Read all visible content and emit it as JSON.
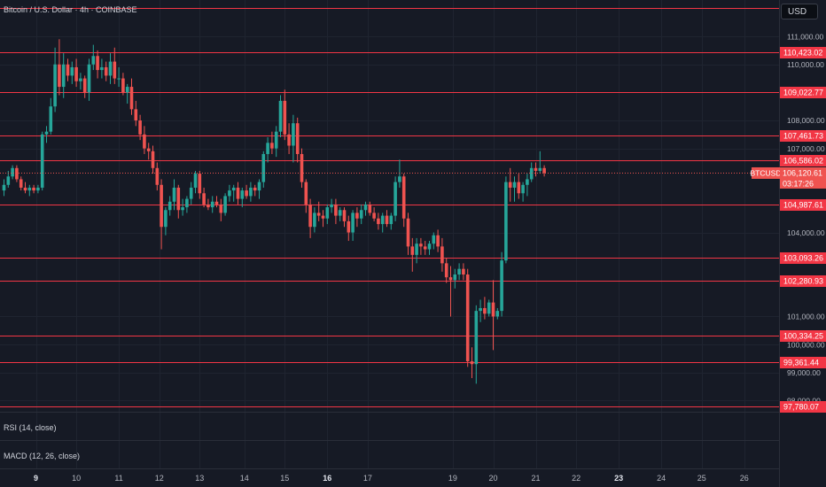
{
  "header": {
    "title": "Bitcoin / U.S. Dollar · 4h · COINBASE"
  },
  "currency_button": "USD",
  "indicators": [
    {
      "label": "RSI (14, close)"
    },
    {
      "label": "MACD (12, 26, close)"
    }
  ],
  "last_price": {
    "symbol": "BTCUSD",
    "value": "106,120.61",
    "countdown": "03:17:26",
    "price": 106120.61
  },
  "colors": {
    "background": "#161a25",
    "up": "#26a69a",
    "down": "#ef5350",
    "level_line": "#f23645",
    "axis_text": "#b2b5be"
  },
  "chart_data": {
    "type": "candlestick",
    "title": "Bitcoin / U.S. Dollar · 4h · COINBASE",
    "ylim": [
      97600,
      112300
    ],
    "x_ticks": [
      {
        "label": "9",
        "index": 7.5,
        "bold": true
      },
      {
        "label": "10",
        "index": 17
      },
      {
        "label": "11",
        "index": 27
      },
      {
        "label": "12",
        "index": 36.5
      },
      {
        "label": "13",
        "index": 46
      },
      {
        "label": "14",
        "index": 56.5
      },
      {
        "label": "15",
        "index": 66
      },
      {
        "label": "16",
        "index": 76,
        "bold": true
      },
      {
        "label": "17",
        "index": 85.5
      },
      {
        "label": "19",
        "index": 105.5
      },
      {
        "label": "20",
        "index": 115
      },
      {
        "label": "21",
        "index": 125
      },
      {
        "label": "22",
        "index": 134.5
      },
      {
        "label": "23",
        "index": 144.5,
        "bold": true
      },
      {
        "label": "24",
        "index": 154.5
      },
      {
        "label": "25",
        "index": 164
      },
      {
        "label": "26",
        "index": 174
      }
    ],
    "y_ticks": [
      "111,000.00",
      "110,000.00",
      "108,000.00",
      "107,000.00",
      "104,000.00",
      "101,000.00",
      "100,000.00",
      "99,000.00",
      "98,000.00"
    ],
    "y_tick_values": [
      111000,
      110000,
      108000,
      107000,
      104000,
      101000,
      100000,
      99000,
      98000
    ],
    "levels": [
      {
        "label": "110,423.02",
        "price": 110423.02
      },
      {
        "label": "109,022.77",
        "price": 109022.77
      },
      {
        "label": "107,461.73",
        "price": 107461.73
      },
      {
        "label": "106,586.02",
        "price": 106586.02
      },
      {
        "label": "104,987.61",
        "price": 104987.61
      },
      {
        "label": "103,093.26",
        "price": 103093.26
      },
      {
        "label": "102,280.93",
        "price": 102280.93
      },
      {
        "label": "100,334.25",
        "price": 100334.25
      },
      {
        "label": "99,361.44",
        "price": 99361.44
      },
      {
        "label": "97,780.07",
        "price": 97780.07
      }
    ],
    "candles": [
      [
        105500,
        105900,
        105300,
        105700
      ],
      [
        105700,
        106200,
        105600,
        106000
      ],
      [
        106000,
        106400,
        105900,
        106300
      ],
      [
        106300,
        106400,
        105800,
        105900
      ],
      [
        105900,
        106000,
        105500,
        105600
      ],
      [
        105600,
        105800,
        105400,
        105500
      ],
      [
        105500,
        105700,
        105300,
        105600
      ],
      [
        105600,
        105700,
        105400,
        105500
      ],
      [
        105500,
        105700,
        105400,
        105600
      ],
      [
        105600,
        107600,
        105500,
        107500
      ],
      [
        107500,
        107800,
        107200,
        107600
      ],
      [
        107600,
        108800,
        107500,
        108500
      ],
      [
        108500,
        110600,
        108300,
        110000
      ],
      [
        110000,
        110900,
        108900,
        109200
      ],
      [
        109200,
        110400,
        108800,
        110000
      ],
      [
        110000,
        110200,
        109400,
        109600
      ],
      [
        109600,
        110100,
        109300,
        109900
      ],
      [
        109900,
        110200,
        109200,
        109400
      ],
      [
        109400,
        109700,
        109100,
        109500
      ],
      [
        109500,
        109600,
        108800,
        109000
      ],
      [
        109000,
        110200,
        108700,
        110000
      ],
      [
        110000,
        110700,
        109800,
        110300
      ],
      [
        110300,
        110500,
        109500,
        109800
      ],
      [
        109800,
        110200,
        109500,
        109900
      ],
      [
        109900,
        110100,
        109400,
        109600
      ],
      [
        109600,
        110400,
        109300,
        110100
      ],
      [
        110100,
        110600,
        109300,
        109500
      ],
      [
        109500,
        109900,
        109200,
        109500
      ],
      [
        109500,
        109700,
        108900,
        109000
      ],
      [
        109000,
        109300,
        108600,
        109200
      ],
      [
        109200,
        109500,
        108200,
        108400
      ],
      [
        108400,
        108700,
        107800,
        108000
      ],
      [
        108000,
        108200,
        107300,
        107500
      ],
      [
        107500,
        107800,
        106800,
        107000
      ],
      [
        107000,
        107200,
        106600,
        106900
      ],
      [
        106900,
        107100,
        106100,
        106300
      ],
      [
        106300,
        106500,
        105500,
        105700
      ],
      [
        105700,
        105900,
        103400,
        104200
      ],
      [
        104200,
        104900,
        103900,
        104800
      ],
      [
        104800,
        105300,
        104600,
        105100
      ],
      [
        105100,
        105900,
        104800,
        105600
      ],
      [
        105600,
        105700,
        104500,
        104800
      ],
      [
        104800,
        105200,
        104600,
        104900
      ],
      [
        104900,
        105300,
        104700,
        105200
      ],
      [
        105200,
        105800,
        105000,
        105600
      ],
      [
        105600,
        106200,
        105400,
        106100
      ],
      [
        106100,
        106200,
        105200,
        105400
      ],
      [
        105400,
        105600,
        104900,
        105000
      ],
      [
        105000,
        105200,
        104800,
        104900
      ],
      [
        104900,
        105300,
        104700,
        105100
      ],
      [
        105100,
        105300,
        104900,
        105000
      ],
      [
        105000,
        105200,
        104400,
        104700
      ],
      [
        104700,
        105400,
        104600,
        105300
      ],
      [
        105300,
        105700,
        105100,
        105500
      ],
      [
        105500,
        105700,
        105100,
        105600
      ],
      [
        105600,
        105800,
        105000,
        105200
      ],
      [
        105200,
        105600,
        104900,
        105500
      ],
      [
        105500,
        105700,
        105200,
        105300
      ],
      [
        105300,
        105800,
        105100,
        105600
      ],
      [
        105600,
        105700,
        105300,
        105500
      ],
      [
        105500,
        105900,
        105200,
        105800
      ],
      [
        105800,
        106900,
        105600,
        106800
      ],
      [
        106800,
        107400,
        106500,
        107200
      ],
      [
        107200,
        107600,
        106800,
        107000
      ],
      [
        107000,
        107800,
        106700,
        107600
      ],
      [
        107600,
        108900,
        107400,
        108700
      ],
      [
        108700,
        109100,
        107300,
        107500
      ],
      [
        107500,
        107900,
        106800,
        107100
      ],
      [
        107100,
        108200,
        106500,
        107900
      ],
      [
        107900,
        108100,
        106500,
        106800
      ],
      [
        106800,
        107000,
        105600,
        105800
      ],
      [
        105800,
        105900,
        104700,
        105000
      ],
      [
        105000,
        105200,
        103800,
        104200
      ],
      [
        104200,
        104900,
        104000,
        104700
      ],
      [
        104700,
        105100,
        104400,
        104600
      ],
      [
        104600,
        104800,
        104200,
        104500
      ],
      [
        104500,
        105000,
        104300,
        104900
      ],
      [
        104900,
        105200,
        104700,
        105000
      ],
      [
        105000,
        105200,
        104300,
        104600
      ],
      [
        104600,
        104900,
        104400,
        104800
      ],
      [
        104800,
        104900,
        104200,
        104400
      ],
      [
        104400,
        104600,
        103700,
        104000
      ],
      [
        104000,
        104800,
        103700,
        104700
      ],
      [
        104700,
        104900,
        104200,
        104500
      ],
      [
        104500,
        105000,
        104300,
        104800
      ],
      [
        104800,
        105100,
        104600,
        105000
      ],
      [
        105000,
        105100,
        104600,
        104700
      ],
      [
        104700,
        104900,
        104400,
        104500
      ],
      [
        104500,
        104700,
        104100,
        104300
      ],
      [
        104300,
        104700,
        104000,
        104600
      ],
      [
        104600,
        104800,
        104200,
        104300
      ],
      [
        104300,
        104700,
        104100,
        104600
      ],
      [
        104600,
        106000,
        104400,
        105800
      ],
      [
        105800,
        106600,
        105600,
        106000
      ],
      [
        106000,
        106100,
        104200,
        104500
      ],
      [
        104500,
        104700,
        103200,
        103500
      ],
      [
        103500,
        103800,
        102600,
        103200
      ],
      [
        103200,
        103800,
        102900,
        103600
      ],
      [
        103600,
        103800,
        103200,
        103500
      ],
      [
        103500,
        103700,
        103200,
        103400
      ],
      [
        103400,
        103700,
        103200,
        103600
      ],
      [
        103600,
        104000,
        103400,
        103900
      ],
      [
        103900,
        104100,
        103300,
        103500
      ],
      [
        103500,
        103800,
        102600,
        102900
      ],
      [
        102900,
        103100,
        102200,
        102400
      ],
      [
        102400,
        102800,
        101000,
        102300
      ],
      [
        102300,
        102700,
        102000,
        102500
      ],
      [
        102500,
        102900,
        102300,
        102700
      ],
      [
        102700,
        102900,
        102300,
        102500
      ],
      [
        102500,
        102700,
        99200,
        99400
      ],
      [
        99400,
        99900,
        98800,
        99300
      ],
      [
        99300,
        101400,
        98600,
        101200
      ],
      [
        101200,
        101600,
        100800,
        101300
      ],
      [
        101300,
        101700,
        100900,
        101100
      ],
      [
        101100,
        101600,
        101000,
        101500
      ],
      [
        101500,
        102300,
        99800,
        101000
      ],
      [
        101000,
        101300,
        100900,
        101200
      ],
      [
        101200,
        103300,
        101000,
        103000
      ],
      [
        103000,
        106000,
        102900,
        105800
      ],
      [
        105800,
        106300,
        105100,
        105600
      ],
      [
        105600,
        106000,
        105100,
        105800
      ],
      [
        105800,
        106100,
        105200,
        105400
      ],
      [
        105400,
        105800,
        105100,
        105700
      ],
      [
        105700,
        106100,
        105300,
        105900
      ],
      [
        105900,
        106500,
        105800,
        106300
      ],
      [
        106300,
        106500,
        106000,
        106200
      ],
      [
        106200,
        106900,
        106100,
        106300
      ],
      [
        106300,
        106400,
        106000,
        106120.61
      ]
    ]
  }
}
